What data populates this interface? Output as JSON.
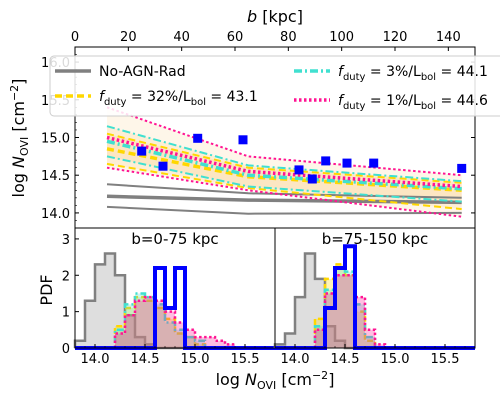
{
  "chart_data": [
    {
      "id": "top",
      "type": "line",
      "xlabel_top": "b [kpc]",
      "ylabel": "log N_OVI [cm^-2]",
      "xlim_top": [
        0,
        150
      ],
      "ylim": [
        13.8,
        16.2
      ],
      "xticks_top": [
        "0",
        "20",
        "40",
        "60",
        "80",
        "100",
        "120",
        "140"
      ],
      "yticks": [
        "14.0",
        "14.5",
        "15.0",
        "15.5",
        "16.0"
      ],
      "legend": {
        "placement": "top",
        "entries": [
          {
            "name": "No-AGN-Rad",
            "color": "#808080",
            "style": "solid"
          },
          {
            "name_prefix": "f",
            "name_sub": "duty",
            "name_rest": " = 32%/L",
            "name_sub2": "bol",
            "name_tail": " = 43.1",
            "color": "#ffd700",
            "style": "dashed"
          },
          {
            "name_prefix": "f",
            "name_sub": "duty",
            "name_rest": " = 3%/L",
            "name_sub2": "bol",
            "name_tail": " = 44.1",
            "color": "#40e0d0",
            "style": "dashdot"
          },
          {
            "name_prefix": "f",
            "name_sub": "duty",
            "name_rest": " = 1%/L",
            "name_sub2": "bol",
            "name_tail": " = 44.6",
            "color": "#ff1493",
            "style": "dotted"
          }
        ]
      },
      "x": [
        12,
        65,
        145
      ],
      "series": [
        {
          "key": "noagn",
          "color": "#808080",
          "style": "solid",
          "median": [
            14.22,
            14.17,
            14.14
          ],
          "upper": [
            14.38,
            14.26,
            14.2
          ],
          "lower": [
            14.08,
            13.99,
            14.0
          ]
        },
        {
          "key": "f32",
          "color": "#ffd700",
          "style": "dashed",
          "median": [
            14.85,
            14.48,
            14.3
          ],
          "upper": [
            15.05,
            14.6,
            14.4
          ],
          "lower": [
            14.65,
            14.33,
            14.05
          ]
        },
        {
          "key": "f3",
          "color": "#40e0d0",
          "style": "dashdot",
          "median": [
            14.95,
            14.5,
            14.32
          ],
          "upper": [
            15.15,
            14.63,
            14.42
          ],
          "lower": [
            14.75,
            14.35,
            14.15
          ]
        },
        {
          "key": "f1",
          "color": "#ff1493",
          "style": "dotted",
          "median": [
            15.0,
            14.55,
            14.35
          ],
          "upper": [
            15.4,
            14.75,
            14.5
          ],
          "lower": [
            14.6,
            14.3,
            13.95
          ]
        }
      ],
      "observations": {
        "color": "#0000ff",
        "x": [
          25,
          33,
          46,
          63,
          84,
          89,
          94,
          102,
          112,
          145
        ],
        "y": [
          14.82,
          14.62,
          14.99,
          14.97,
          14.57,
          14.45,
          14.69,
          14.66,
          14.66,
          14.59
        ]
      }
    },
    {
      "id": "pdf-left",
      "type": "histogram",
      "panel_label": "b=0-75 kpc",
      "ylabel": "PDF",
      "xlabel": "log N_OVI [cm^-2]",
      "xlim": [
        13.8,
        15.8
      ],
      "ylim": [
        0,
        3.3
      ],
      "xticks": [
        "14.0",
        "14.5",
        "15.0",
        "15.5"
      ],
      "yticks": [
        "0",
        "1",
        "2",
        "3"
      ],
      "bin_width": 0.1,
      "series": [
        {
          "key": "noagn",
          "color": "#808080",
          "fill": "#d3d3d3",
          "bins_start": 13.8,
          "values": [
            0.2,
            1.3,
            2.3,
            2.6,
            2.0,
            0.9,
            0.3,
            0.1,
            0,
            0,
            0,
            0,
            0,
            0,
            0,
            0,
            0,
            0,
            0,
            0
          ]
        },
        {
          "key": "f32",
          "color": "#ffd700",
          "fill": "#ffd700",
          "bins_start": 13.8,
          "values": [
            0,
            0,
            0,
            0,
            0.6,
            1.1,
            1.4,
            1.3,
            1.1,
            0.8,
            0.4,
            0.3,
            0.1,
            0,
            0,
            0,
            0,
            0,
            0,
            0
          ]
        },
        {
          "key": "f3",
          "color": "#40e0d0",
          "fill": "#40e0d0",
          "bins_start": 13.8,
          "values": [
            0,
            0,
            0,
            0,
            0.5,
            1.2,
            1.5,
            1.4,
            1.2,
            0.7,
            0.5,
            0.3,
            0.2,
            0,
            0,
            0,
            0,
            0,
            0,
            0
          ]
        },
        {
          "key": "f1",
          "color": "#ff1493",
          "fill": "#ff1493",
          "bins_start": 13.8,
          "values": [
            0,
            0,
            0,
            0,
            0.4,
            0.9,
            1.3,
            1.4,
            1.3,
            1.0,
            0.7,
            0.5,
            0.3,
            0.3,
            0.2,
            0.1,
            0,
            0,
            0,
            0
          ]
        },
        {
          "key": "obs",
          "color": "#0000ff",
          "fill": "none",
          "bins_start": 13.8,
          "values": [
            0,
            0,
            0,
            0,
            0,
            0,
            0,
            0,
            2.2,
            1.1,
            2.2,
            0,
            0,
            0,
            0,
            0,
            0,
            0,
            0,
            0
          ]
        }
      ]
    },
    {
      "id": "pdf-right",
      "type": "histogram",
      "panel_label": "b=75-150 kpc",
      "xlim": [
        13.8,
        15.8
      ],
      "ylim": [
        0,
        3.3
      ],
      "xticks": [
        "14.0",
        "14.5",
        "15.0",
        "15.5"
      ],
      "bin_width": 0.1,
      "series": [
        {
          "key": "noagn",
          "color": "#808080",
          "fill": "#d3d3d3",
          "bins_start": 13.8,
          "values": [
            0.1,
            0.4,
            1.4,
            2.6,
            1.9,
            0.6,
            0.2,
            0,
            0,
            0,
            0,
            0,
            0,
            0,
            0,
            0,
            0,
            0,
            0,
            0
          ]
        },
        {
          "key": "f32",
          "color": "#ffd700",
          "fill": "#ffd700",
          "bins_start": 13.8,
          "values": [
            0,
            0,
            0,
            0,
            0.8,
            1.9,
            2.3,
            2.0,
            1.0,
            0.2,
            0,
            0,
            0,
            0,
            0,
            0,
            0,
            0,
            0,
            0
          ]
        },
        {
          "key": "f3",
          "color": "#40e0d0",
          "fill": "#40e0d0",
          "bins_start": 13.8,
          "values": [
            0,
            0,
            0,
            0,
            0.6,
            1.6,
            2.2,
            2.1,
            1.2,
            0.3,
            0,
            0,
            0,
            0,
            0,
            0,
            0,
            0,
            0,
            0
          ]
        },
        {
          "key": "f1",
          "color": "#ff1493",
          "fill": "#ff1493",
          "bins_start": 13.8,
          "values": [
            0,
            0,
            0,
            0,
            0.5,
            1.5,
            2.0,
            2.0,
            1.4,
            0.5,
            0.1,
            0,
            0,
            0,
            0,
            0,
            0,
            0,
            0,
            0
          ]
        },
        {
          "key": "obs",
          "color": "#0000ff",
          "fill": "none",
          "bins_start": 13.8,
          "values": [
            0,
            0,
            0,
            0,
            0,
            1.1,
            2.2,
            2.8,
            0,
            0,
            0,
            0,
            0,
            0,
            0,
            0,
            0,
            0,
            0,
            0
          ]
        }
      ]
    }
  ]
}
